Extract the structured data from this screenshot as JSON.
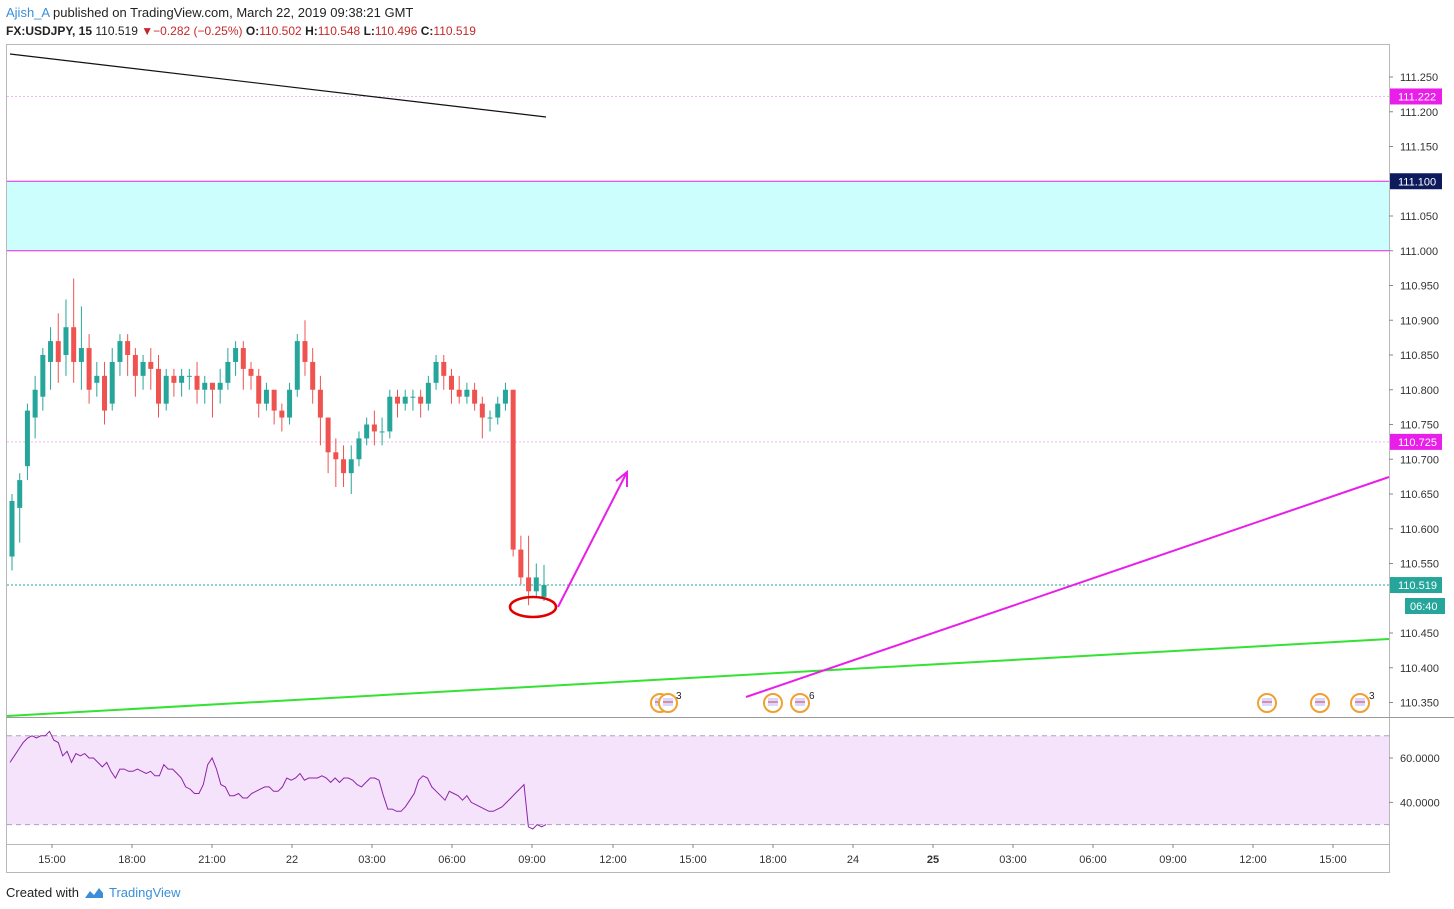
{
  "header": {
    "author": "Ajish_A",
    "published_text": "published on TradingView.com, March 22, 2019 09:38:21 GMT",
    "symbol": "FX:USDJPY, 15",
    "last": "110.519",
    "arrow": "▼",
    "change": "−0.282 (−0.25%)",
    "open_label": "O:",
    "open": "110.502",
    "high_label": "H:",
    "high": "110.548",
    "low_label": "L:",
    "low": "110.496",
    "close_label": "C:",
    "close": "110.519"
  },
  "footer": {
    "created_with": "Created with",
    "brand": "TradingView",
    "logo_icon": "tradingview-cloud-icon"
  },
  "colors": {
    "up": "#26a69a",
    "down": "#ef5350",
    "magenta": "#e91ee9",
    "green": "#33e233",
    "zone_fill": "#cdfefe",
    "rsi_line": "#8e24aa",
    "rsi_band": "#f4e3fb",
    "current_price_tag": "#26a69a",
    "level_tag": "#e91ee9",
    "zone_top_tag": "#0d1b5c"
  },
  "chart_data": {
    "type": "candlestick",
    "symbol": "FX:USDJPY",
    "interval": "15",
    "y_price_range": [
      110.33,
      111.3
    ],
    "y_ticks": [
      "111.250",
      "111.200",
      "111.150",
      "111.050",
      "111.000",
      "110.950",
      "110.900",
      "110.850",
      "110.800",
      "110.750",
      "110.700",
      "110.650",
      "110.600",
      "110.550",
      "110.450",
      "110.400",
      "110.350"
    ],
    "x_ticks": [
      "15:00",
      "18:00",
      "21:00",
      "22",
      "03:00",
      "06:00",
      "09:00",
      "12:00",
      "15:00",
      "18:00",
      "24",
      "25",
      "03:00",
      "06:00",
      "09:00",
      "12:00",
      "15:00"
    ],
    "x_tick_bold": [
      false,
      false,
      false,
      false,
      false,
      false,
      false,
      false,
      false,
      false,
      false,
      true,
      false,
      false,
      false,
      false,
      false
    ],
    "price_tags": {
      "level_high": "111.222",
      "zone_top": "111.100",
      "level_mid": "110.725",
      "current": "110.519",
      "countdown": "06:40"
    },
    "levels": [
      111.222,
      110.725,
      110.519
    ],
    "zone": [
      111.0,
      111.1
    ],
    "candles": [
      [
        110.56,
        110.64,
        110.54,
        110.65
      ],
      [
        110.63,
        110.67,
        110.58,
        110.68
      ],
      [
        110.69,
        110.77,
        110.67,
        110.78
      ],
      [
        110.76,
        110.8,
        110.73,
        110.82
      ],
      [
        110.79,
        110.85,
        110.77,
        110.86
      ],
      [
        110.84,
        110.87,
        110.8,
        110.89
      ],
      [
        110.87,
        110.84,
        110.81,
        110.91
      ],
      [
        110.85,
        110.89,
        110.82,
        110.93
      ],
      [
        110.89,
        110.84,
        110.81,
        110.96
      ],
      [
        110.84,
        110.86,
        110.8,
        110.92
      ],
      [
        110.86,
        110.8,
        110.78,
        110.88
      ],
      [
        110.81,
        110.82,
        110.79,
        110.84
      ],
      [
        110.82,
        110.77,
        110.75,
        110.84
      ],
      [
        110.78,
        110.84,
        110.77,
        110.86
      ],
      [
        110.84,
        110.87,
        110.82,
        110.88
      ],
      [
        110.87,
        110.85,
        110.82,
        110.88
      ],
      [
        110.85,
        110.82,
        110.79,
        110.86
      ],
      [
        110.82,
        110.84,
        110.8,
        110.85
      ],
      [
        110.84,
        110.83,
        110.8,
        110.86
      ],
      [
        110.83,
        110.78,
        110.76,
        110.85
      ],
      [
        110.78,
        110.82,
        110.77,
        110.83
      ],
      [
        110.82,
        110.81,
        110.79,
        110.83
      ],
      [
        110.81,
        110.82,
        110.79,
        110.83
      ],
      [
        110.82,
        110.82,
        110.8,
        110.83
      ],
      [
        110.82,
        110.8,
        110.78,
        110.84
      ],
      [
        110.8,
        110.81,
        110.78,
        110.82
      ],
      [
        110.81,
        110.8,
        110.76,
        110.81
      ],
      [
        110.8,
        110.81,
        110.78,
        110.83
      ],
      [
        110.81,
        110.84,
        110.8,
        110.86
      ],
      [
        110.84,
        110.86,
        110.82,
        110.87
      ],
      [
        110.86,
        110.83,
        110.8,
        110.87
      ],
      [
        110.83,
        110.82,
        110.8,
        110.84
      ],
      [
        110.82,
        110.78,
        110.76,
        110.83
      ],
      [
        110.78,
        110.8,
        110.77,
        110.81
      ],
      [
        110.8,
        110.77,
        110.75,
        110.8
      ],
      [
        110.77,
        110.76,
        110.74,
        110.78
      ],
      [
        110.76,
        110.8,
        110.75,
        110.81
      ],
      [
        110.8,
        110.87,
        110.79,
        110.88
      ],
      [
        110.87,
        110.84,
        110.82,
        110.9
      ],
      [
        110.84,
        110.8,
        110.78,
        110.86
      ],
      [
        110.8,
        110.76,
        110.72,
        110.82
      ],
      [
        110.76,
        110.71,
        110.68,
        110.76
      ],
      [
        110.71,
        110.7,
        110.66,
        110.73
      ],
      [
        110.7,
        110.68,
        110.66,
        110.72
      ],
      [
        110.68,
        110.7,
        110.65,
        110.72
      ],
      [
        110.7,
        110.73,
        110.69,
        110.74
      ],
      [
        110.73,
        110.75,
        110.72,
        110.76
      ],
      [
        110.75,
        110.74,
        110.72,
        110.77
      ],
      [
        110.74,
        110.74,
        110.72,
        110.76
      ],
      [
        110.74,
        110.79,
        110.73,
        110.8
      ],
      [
        110.79,
        110.78,
        110.76,
        110.8
      ],
      [
        110.78,
        110.79,
        110.77,
        110.8
      ],
      [
        110.79,
        110.79,
        110.77,
        110.8
      ],
      [
        110.79,
        110.78,
        110.76,
        110.8
      ],
      [
        110.78,
        110.81,
        110.77,
        110.82
      ],
      [
        110.81,
        110.84,
        110.8,
        110.85
      ],
      [
        110.84,
        110.82,
        110.8,
        110.85
      ],
      [
        110.82,
        110.8,
        110.78,
        110.83
      ],
      [
        110.8,
        110.79,
        110.78,
        110.82
      ],
      [
        110.79,
        110.8,
        110.78,
        110.81
      ],
      [
        110.8,
        110.78,
        110.77,
        110.81
      ],
      [
        110.78,
        110.76,
        110.73,
        110.79
      ],
      [
        110.76,
        110.76,
        110.74,
        110.77
      ],
      [
        110.76,
        110.78,
        110.75,
        110.79
      ],
      [
        110.78,
        110.8,
        110.77,
        110.81
      ],
      [
        110.8,
        110.57,
        110.56,
        110.8
      ],
      [
        110.57,
        110.53,
        110.52,
        110.59
      ],
      [
        110.53,
        110.51,
        110.49,
        110.59
      ],
      [
        110.51,
        110.53,
        110.5,
        110.55
      ],
      [
        110.502,
        110.519,
        110.496,
        110.548
      ]
    ],
    "rsi_ticks": [
      "60.0000",
      "40.0000"
    ],
    "rsi_values": [
      58,
      61,
      64,
      67,
      69,
      70,
      69,
      70,
      70,
      72,
      68,
      67,
      61,
      63,
      58,
      62,
      61,
      62,
      60,
      60,
      58,
      56,
      58,
      54,
      51,
      55,
      55,
      54,
      54,
      55,
      54,
      53,
      54,
      52,
      52,
      57,
      55,
      55,
      53,
      51,
      47,
      46,
      44,
      44,
      48,
      57,
      60,
      55,
      48,
      47,
      43,
      43,
      44,
      42,
      42,
      44,
      45,
      46,
      47,
      47,
      45,
      45,
      47,
      51,
      50,
      51,
      53,
      50,
      51,
      51,
      51,
      52,
      51,
      49,
      51,
      49,
      51,
      51,
      50,
      48,
      47,
      49,
      51,
      51,
      50,
      43,
      37,
      37,
      36,
      36,
      38,
      41,
      44,
      50,
      52,
      51,
      47,
      45,
      43,
      41,
      45,
      44,
      43,
      41,
      43,
      40,
      39,
      38,
      37,
      36,
      36,
      37,
      38,
      40,
      42,
      44,
      46,
      48,
      29,
      28,
      30,
      29,
      30
    ],
    "event_markers": [
      {
        "label": "3",
        "badge": "us-flag-icon"
      },
      {
        "label": "6",
        "badge": "us-flag-icon"
      },
      {
        "label": "3",
        "badge": "us-flag-icon"
      }
    ]
  }
}
